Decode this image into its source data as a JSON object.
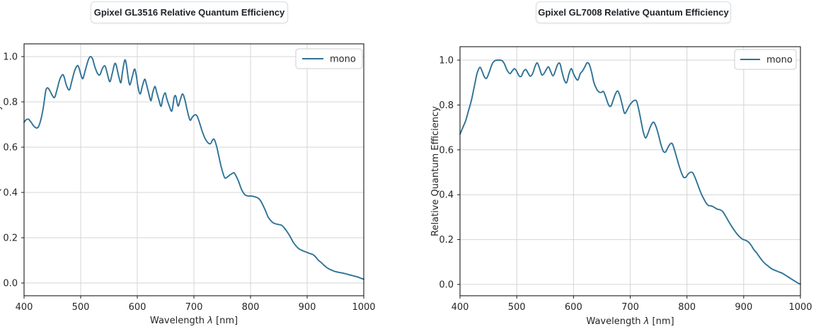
{
  "page": {
    "background": "#ffffff"
  },
  "colors": {
    "line": "#2e7296",
    "grid": "#d4d4d4",
    "spine": "#1a1a1a",
    "text": "#262626",
    "title_text": "#202428",
    "title_border": "#d8dce0",
    "title_bg": "#ffffff",
    "legend_border": "#cccccc"
  },
  "charts": [
    {
      "title": "Gpixel GL3516 Relative Quantum Efficiency",
      "legend_label": "mono",
      "ylabel_clipped": true
    },
    {
      "title": "Gpixel GL7008 Relative Quantum Efficiency",
      "legend_label": "mono",
      "ylabel_clipped": false
    }
  ],
  "chart_data": [
    {
      "type": "line",
      "title": "Gpixel GL3516 Relative Quantum Efficiency",
      "xlabel": "Wavelength λ [nm]",
      "ylabel": "Relative Quantum Efficiency",
      "x_ticks": [
        400,
        500,
        600,
        700,
        800,
        900,
        1000
      ],
      "y_ticks": [
        0.0,
        0.2,
        0.4,
        0.6,
        0.8,
        1.0
      ],
      "xlim": [
        400,
        1000
      ],
      "ylim": [
        -0.05,
        1.06
      ],
      "grid": true,
      "legend_position": "upper right",
      "series": [
        {
          "name": "mono",
          "x": [
            400,
            404,
            408,
            413,
            418,
            424,
            429,
            434,
            438,
            441,
            445,
            450,
            454,
            458,
            463,
            468,
            471,
            475,
            480,
            484,
            489,
            494,
            497,
            501,
            504,
            508,
            513,
            517,
            521,
            525,
            530,
            534,
            538,
            542,
            545,
            549,
            552,
            556,
            560,
            563,
            567,
            571,
            574,
            578,
            581,
            584,
            587,
            591,
            595,
            598,
            601,
            605,
            609,
            613,
            616,
            620,
            624,
            627,
            631,
            634,
            638,
            642,
            645,
            649,
            652,
            656,
            661,
            665,
            668,
            672,
            676,
            680,
            684,
            688,
            693,
            697,
            701,
            705,
            709,
            714,
            719,
            724,
            729,
            733,
            736,
            740,
            744,
            748,
            752,
            755,
            759,
            764,
            768,
            771,
            775,
            779,
            783,
            787,
            791,
            796,
            801,
            806,
            811,
            815,
            819,
            823,
            827,
            831,
            836,
            840,
            845,
            850,
            855,
            860,
            865,
            870,
            875,
            880,
            885,
            890,
            895,
            900,
            905,
            910,
            915,
            920,
            925,
            930,
            936,
            942,
            948,
            954,
            960,
            966,
            972,
            978,
            984,
            990,
            995,
            1000
          ],
          "y": [
            0.71,
            0.722,
            0.723,
            0.708,
            0.691,
            0.686,
            0.715,
            0.775,
            0.845,
            0.862,
            0.852,
            0.828,
            0.82,
            0.852,
            0.898,
            0.92,
            0.908,
            0.872,
            0.853,
            0.888,
            0.935,
            0.96,
            0.95,
            0.915,
            0.903,
            0.938,
            0.982,
            1.0,
            0.99,
            0.955,
            0.925,
            0.92,
            0.945,
            0.96,
            0.945,
            0.905,
            0.89,
            0.928,
            0.968,
            0.96,
            0.915,
            0.885,
            0.935,
            0.985,
            0.96,
            0.905,
            0.875,
            0.91,
            0.945,
            0.92,
            0.87,
            0.835,
            0.87,
            0.9,
            0.88,
            0.84,
            0.805,
            0.838,
            0.868,
            0.845,
            0.81,
            0.78,
            0.815,
            0.84,
            0.815,
            0.785,
            0.76,
            0.818,
            0.825,
            0.782,
            0.81,
            0.835,
            0.81,
            0.765,
            0.72,
            0.732,
            0.742,
            0.74,
            0.715,
            0.675,
            0.642,
            0.622,
            0.615,
            0.632,
            0.634,
            0.605,
            0.56,
            0.515,
            0.48,
            0.463,
            0.468,
            0.478,
            0.484,
            0.487,
            0.47,
            0.448,
            0.42,
            0.4,
            0.388,
            0.384,
            0.384,
            0.382,
            0.378,
            0.372,
            0.358,
            0.338,
            0.316,
            0.292,
            0.275,
            0.266,
            0.261,
            0.258,
            0.255,
            0.242,
            0.225,
            0.205,
            0.182,
            0.165,
            0.152,
            0.145,
            0.14,
            0.135,
            0.13,
            0.126,
            0.115,
            0.1,
            0.09,
            0.078,
            0.066,
            0.058,
            0.052,
            0.048,
            0.045,
            0.042,
            0.038,
            0.034,
            0.03,
            0.026,
            0.021,
            0.017
          ]
        }
      ]
    },
    {
      "type": "line",
      "title": "Gpixel GL7008 Relative Quantum Efficiency",
      "xlabel": "Wavelength λ [nm]",
      "ylabel": "Relative Quantum Efficiency",
      "x_ticks": [
        400,
        500,
        600,
        700,
        800,
        900,
        1000
      ],
      "y_ticks": [
        0.0,
        0.2,
        0.4,
        0.6,
        0.8,
        1.0
      ],
      "xlim": [
        400,
        1000
      ],
      "ylim": [
        -0.05,
        1.06
      ],
      "grid": true,
      "legend_position": "upper right",
      "series": [
        {
          "name": "mono",
          "x": [
            400,
            405,
            410,
            415,
            420,
            425,
            430,
            435,
            439,
            443,
            447,
            452,
            457,
            462,
            466,
            470,
            474,
            478,
            483,
            488,
            492,
            496,
            500,
            504,
            508,
            512,
            516,
            520,
            524,
            528,
            532,
            536,
            540,
            544,
            548,
            552,
            556,
            560,
            564,
            568,
            572,
            576,
            580,
            584,
            588,
            592,
            596,
            600,
            604,
            608,
            612,
            616,
            620,
            624,
            628,
            632,
            636,
            641,
            645,
            649,
            653,
            657,
            662,
            666,
            670,
            674,
            678,
            682,
            686,
            690,
            694,
            698,
            703,
            707,
            711,
            715,
            719,
            723,
            727,
            731,
            735,
            739,
            742,
            746,
            750,
            754,
            758,
            762,
            766,
            770,
            774,
            778,
            782,
            786,
            790,
            794,
            798,
            802,
            806,
            810,
            814,
            818,
            822,
            826,
            830,
            834,
            838,
            843,
            848,
            853,
            858,
            863,
            868,
            873,
            878,
            883,
            888,
            893,
            898,
            903,
            908,
            913,
            918,
            923,
            928,
            933,
            938,
            943,
            948,
            953,
            958,
            963,
            968,
            973,
            978,
            983,
            988,
            993,
            997,
            1000
          ],
          "y": [
            0.67,
            0.7,
            0.73,
            0.775,
            0.82,
            0.88,
            0.94,
            0.968,
            0.95,
            0.925,
            0.92,
            0.95,
            0.985,
            0.998,
            1.0,
            1.0,
            0.998,
            0.985,
            0.955,
            0.94,
            0.952,
            0.962,
            0.95,
            0.93,
            0.928,
            0.95,
            0.958,
            0.942,
            0.928,
            0.94,
            0.97,
            0.988,
            0.965,
            0.935,
            0.94,
            0.958,
            0.97,
            0.948,
            0.93,
            0.952,
            0.98,
            0.985,
            0.945,
            0.91,
            0.9,
            0.938,
            0.962,
            0.94,
            0.92,
            0.912,
            0.94,
            0.952,
            0.97,
            0.988,
            0.98,
            0.945,
            0.9,
            0.87,
            0.858,
            0.856,
            0.86,
            0.835,
            0.8,
            0.795,
            0.822,
            0.85,
            0.862,
            0.84,
            0.8,
            0.763,
            0.775,
            0.795,
            0.812,
            0.82,
            0.818,
            0.78,
            0.73,
            0.68,
            0.653,
            0.672,
            0.7,
            0.72,
            0.722,
            0.7,
            0.665,
            0.625,
            0.595,
            0.59,
            0.608,
            0.625,
            0.628,
            0.6,
            0.565,
            0.53,
            0.5,
            0.478,
            0.478,
            0.492,
            0.5,
            0.498,
            0.478,
            0.452,
            0.425,
            0.4,
            0.38,
            0.362,
            0.352,
            0.35,
            0.344,
            0.336,
            0.333,
            0.325,
            0.305,
            0.283,
            0.262,
            0.243,
            0.226,
            0.212,
            0.202,
            0.197,
            0.19,
            0.175,
            0.155,
            0.14,
            0.122,
            0.105,
            0.092,
            0.082,
            0.072,
            0.065,
            0.06,
            0.055,
            0.05,
            0.042,
            0.034,
            0.026,
            0.018,
            0.01,
            0.004,
            0.001
          ]
        }
      ]
    }
  ]
}
